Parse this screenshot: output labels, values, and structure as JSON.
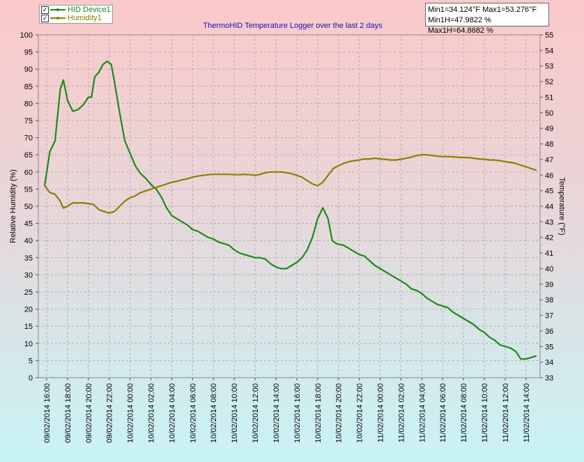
{
  "legend": {
    "items": [
      {
        "label": "HID Device1",
        "color": "#1a8a1a",
        "checked": true
      },
      {
        "label": "Humidity1",
        "color": "#8a8000",
        "checked": true
      }
    ]
  },
  "stats": {
    "line1": "Min1=34.124°F  Max1=53.276°F",
    "line2": "Min1H=47.9822 % Max1H=64.8682 %"
  },
  "chart_data": {
    "type": "line",
    "title": "ThermoHID Temperature Logger over the last 2 days",
    "ylabel": "Relative Humidity (%)",
    "y2label": "Temperature (°F)",
    "ylim": [
      0,
      100
    ],
    "y2lim": [
      33,
      55
    ],
    "y_ticks": [
      "0",
      "5",
      "10",
      "15",
      "20",
      "25",
      "30",
      "35",
      "40",
      "45",
      "50",
      "55",
      "60",
      "65",
      "70",
      "75",
      "80",
      "85",
      "90",
      "95",
      "100"
    ],
    "y2_ticks": [
      "33",
      "34",
      "35",
      "36",
      "37",
      "38",
      "39",
      "40",
      "41",
      "42",
      "43",
      "44",
      "45",
      "46",
      "47",
      "48",
      "49",
      "50",
      "51",
      "52",
      "53",
      "54",
      "55"
    ],
    "x_ticks": [
      "09/02/2014 16:00",
      "09/02/2014 18:00",
      "09/02/2014 20:00",
      "09/02/2014 22:00",
      "10/02/2014 00:00",
      "10/02/2014 02:00",
      "10/02/2014 04:00",
      "10/02/2014 06:00",
      "10/02/2014 08:00",
      "10/02/2014 10:00",
      "10/02/2014 12:00",
      "10/02/2014 14:00",
      "10/02/2014 16:00",
      "10/02/2014 18:00",
      "10/02/2014 20:00",
      "10/02/2014 22:00",
      "11/02/2014 00:00",
      "11/02/2014 02:00",
      "11/02/2014 04:00",
      "11/02/2014 06:00",
      "11/02/2014 08:00",
      "11/02/2014 10:00",
      "11/02/2014 12:00",
      "11/02/2014 14:00"
    ],
    "x_range_hours": [
      -0.2,
      47.0
    ],
    "grid": true,
    "legend_position": "top-left",
    "series": [
      {
        "name": "HID Device1",
        "axis": "right",
        "color": "#1a8a1a",
        "points": [
          [
            -0.2,
            45.3
          ],
          [
            0.3,
            47.5
          ],
          [
            0.8,
            48.2
          ],
          [
            1.3,
            51.5
          ],
          [
            1.6,
            52.1
          ],
          [
            2.0,
            50.8
          ],
          [
            2.5,
            50.1
          ],
          [
            3.0,
            50.2
          ],
          [
            3.5,
            50.5
          ],
          [
            4.0,
            51.0
          ],
          [
            4.3,
            51.0
          ],
          [
            4.6,
            52.3
          ],
          [
            5.0,
            52.6
          ],
          [
            5.4,
            53.1
          ],
          [
            5.8,
            53.3
          ],
          [
            6.2,
            53.1
          ],
          [
            6.5,
            52.0
          ],
          [
            7.0,
            50.0
          ],
          [
            7.5,
            48.2
          ],
          [
            8.0,
            47.4
          ],
          [
            8.5,
            46.6
          ],
          [
            9.0,
            46.1
          ],
          [
            9.5,
            45.8
          ],
          [
            10.0,
            45.4
          ],
          [
            10.5,
            45.1
          ],
          [
            11.0,
            44.6
          ],
          [
            11.5,
            43.9
          ],
          [
            12.0,
            43.4
          ],
          [
            12.5,
            43.2
          ],
          [
            13.0,
            43.0
          ],
          [
            13.5,
            42.8
          ],
          [
            14.0,
            42.5
          ],
          [
            14.5,
            42.4
          ],
          [
            15.0,
            42.2
          ],
          [
            15.5,
            42.0
          ],
          [
            16.0,
            41.9
          ],
          [
            16.5,
            41.7
          ],
          [
            17.0,
            41.6
          ],
          [
            17.5,
            41.5
          ],
          [
            18.0,
            41.2
          ],
          [
            18.5,
            41.0
          ],
          [
            19.0,
            40.9
          ],
          [
            19.5,
            40.8
          ],
          [
            20.0,
            40.7
          ],
          [
            20.5,
            40.7
          ],
          [
            21.0,
            40.6
          ],
          [
            21.5,
            40.3
          ],
          [
            22.0,
            40.1
          ],
          [
            22.5,
            40.0
          ],
          [
            23.0,
            40.0
          ],
          [
            23.5,
            40.2
          ],
          [
            24.0,
            40.4
          ],
          [
            24.5,
            40.7
          ],
          [
            25.0,
            41.2
          ],
          [
            25.5,
            42.0
          ],
          [
            26.0,
            43.2
          ],
          [
            26.5,
            43.9
          ],
          [
            27.0,
            43.2
          ],
          [
            27.4,
            41.8
          ],
          [
            27.8,
            41.6
          ],
          [
            28.5,
            41.5
          ],
          [
            29.0,
            41.3
          ],
          [
            29.5,
            41.1
          ],
          [
            30.0,
            40.9
          ],
          [
            30.5,
            40.8
          ],
          [
            31.0,
            40.5
          ],
          [
            31.5,
            40.2
          ],
          [
            32.0,
            40.0
          ],
          [
            32.5,
            39.8
          ],
          [
            33.0,
            39.6
          ],
          [
            33.5,
            39.4
          ],
          [
            34.0,
            39.2
          ],
          [
            34.5,
            39.0
          ],
          [
            35.0,
            38.7
          ],
          [
            35.5,
            38.6
          ],
          [
            36.0,
            38.4
          ],
          [
            36.5,
            38.1
          ],
          [
            37.0,
            37.9
          ],
          [
            37.5,
            37.7
          ],
          [
            38.0,
            37.6
          ],
          [
            38.5,
            37.5
          ],
          [
            39.0,
            37.2
          ],
          [
            39.5,
            37.0
          ],
          [
            40.0,
            36.8
          ],
          [
            40.5,
            36.6
          ],
          [
            41.0,
            36.4
          ],
          [
            41.5,
            36.1
          ],
          [
            42.0,
            35.9
          ],
          [
            42.5,
            35.6
          ],
          [
            43.0,
            35.4
          ],
          [
            43.5,
            35.1
          ],
          [
            44.0,
            35.0
          ],
          [
            44.5,
            34.9
          ],
          [
            45.0,
            34.7
          ],
          [
            45.5,
            34.2
          ],
          [
            46.0,
            34.2
          ],
          [
            46.5,
            34.3
          ],
          [
            47.0,
            34.4
          ]
        ]
      },
      {
        "name": "Humidity1",
        "axis": "left",
        "color": "#8a8000",
        "points": [
          [
            -0.2,
            56.0
          ],
          [
            0.3,
            54.0
          ],
          [
            0.8,
            53.5
          ],
          [
            1.3,
            51.5
          ],
          [
            1.6,
            49.5
          ],
          [
            2.0,
            50.0
          ],
          [
            2.5,
            51.0
          ],
          [
            3.0,
            51.0
          ],
          [
            3.5,
            51.0
          ],
          [
            4.0,
            50.8
          ],
          [
            4.5,
            50.5
          ],
          [
            5.0,
            49.0
          ],
          [
            5.5,
            48.5
          ],
          [
            6.0,
            48.0
          ],
          [
            6.5,
            48.5
          ],
          [
            7.0,
            50.0
          ],
          [
            7.5,
            51.5
          ],
          [
            8.0,
            52.5
          ],
          [
            8.5,
            53.0
          ],
          [
            9.0,
            54.0
          ],
          [
            9.5,
            54.5
          ],
          [
            10.0,
            55.0
          ],
          [
            10.5,
            55.5
          ],
          [
            11.0,
            56.0
          ],
          [
            11.5,
            56.5
          ],
          [
            12.0,
            57.0
          ],
          [
            12.5,
            57.3
          ],
          [
            13.0,
            57.7
          ],
          [
            13.5,
            58.0
          ],
          [
            14.0,
            58.5
          ],
          [
            14.5,
            58.8
          ],
          [
            15.0,
            59.0
          ],
          [
            15.5,
            59.2
          ],
          [
            16.0,
            59.3
          ],
          [
            16.5,
            59.3
          ],
          [
            17.0,
            59.3
          ],
          [
            17.5,
            59.3
          ],
          [
            18.0,
            59.2
          ],
          [
            18.5,
            59.2
          ],
          [
            19.0,
            59.3
          ],
          [
            19.5,
            59.2
          ],
          [
            20.0,
            59.0
          ],
          [
            20.5,
            59.3
          ],
          [
            21.0,
            59.8
          ],
          [
            21.5,
            60.0
          ],
          [
            22.0,
            60.0
          ],
          [
            22.5,
            60.0
          ],
          [
            23.0,
            59.8
          ],
          [
            23.5,
            59.5
          ],
          [
            24.0,
            59.0
          ],
          [
            24.5,
            58.5
          ],
          [
            25.0,
            57.5
          ],
          [
            25.5,
            56.5
          ],
          [
            26.0,
            56.0
          ],
          [
            26.5,
            57.0
          ],
          [
            27.0,
            59.0
          ],
          [
            27.5,
            61.0
          ],
          [
            28.0,
            61.8
          ],
          [
            28.5,
            62.5
          ],
          [
            29.0,
            63.0
          ],
          [
            29.5,
            63.3
          ],
          [
            30.0,
            63.5
          ],
          [
            30.5,
            63.8
          ],
          [
            31.0,
            63.8
          ],
          [
            31.5,
            64.0
          ],
          [
            32.0,
            63.8
          ],
          [
            32.5,
            63.7
          ],
          [
            33.0,
            63.5
          ],
          [
            33.5,
            63.5
          ],
          [
            34.0,
            63.7
          ],
          [
            34.5,
            64.0
          ],
          [
            35.0,
            64.3
          ],
          [
            35.5,
            64.8
          ],
          [
            36.0,
            65.0
          ],
          [
            36.5,
            65.0
          ],
          [
            37.0,
            64.8
          ],
          [
            37.5,
            64.6
          ],
          [
            38.0,
            64.5
          ],
          [
            38.5,
            64.5
          ],
          [
            39.0,
            64.4
          ],
          [
            39.5,
            64.3
          ],
          [
            40.0,
            64.2
          ],
          [
            40.5,
            64.2
          ],
          [
            41.0,
            64.0
          ],
          [
            41.5,
            63.8
          ],
          [
            42.0,
            63.7
          ],
          [
            42.5,
            63.5
          ],
          [
            43.0,
            63.5
          ],
          [
            43.5,
            63.3
          ],
          [
            44.0,
            63.0
          ],
          [
            44.5,
            62.8
          ],
          [
            45.0,
            62.5
          ],
          [
            45.5,
            62.0
          ],
          [
            46.0,
            61.5
          ],
          [
            46.5,
            61.0
          ],
          [
            47.0,
            60.5
          ]
        ]
      }
    ]
  }
}
